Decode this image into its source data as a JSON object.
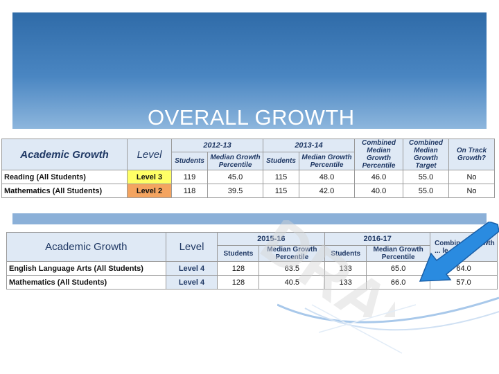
{
  "slide": {
    "title": "OVERALL GROWTH"
  },
  "table1": {
    "header": {
      "academic_growth": "Academic Growth",
      "level": "Level",
      "year1": "2012-13",
      "year2": "2013-14",
      "students": "Students",
      "median_growth_percentile": "Median Growth Percentile",
      "combined_median_growth_percentile": "Combined Median Growth Percentile",
      "combined_median_growth_target": "Combined Median Growth Target",
      "on_track_growth": "On Track Growth?"
    },
    "rows": [
      {
        "label": "Reading (All Students)",
        "level": "Level 3",
        "level_color": "#ffff66",
        "y1_students": "119",
        "y1_mgp": "45.0",
        "y2_students": "115",
        "y2_mgp": "48.0",
        "combined_mgp": "46.0",
        "combined_target": "55.0",
        "on_track": "No"
      },
      {
        "label": "Mathematics (All Students)",
        "level": "Level 2",
        "level_color": "#f4a460",
        "y1_students": "118",
        "y1_mgp": "39.5",
        "y2_students": "115",
        "y2_mgp": "42.0",
        "combined_mgp": "40.0",
        "combined_target": "55.0",
        "on_track": "No"
      }
    ]
  },
  "table2": {
    "header": {
      "academic_growth": "Academic Growth",
      "level": "Level",
      "year1": "2015-16",
      "year2": "2016-17",
      "students": "Students",
      "median_growth_percentile": "Median Growth Percentile",
      "combined_partial": "Combined Growth ... le"
    },
    "rows": [
      {
        "label": "English Language Arts (All Students)",
        "level": "Level 4",
        "y1_students": "128",
        "y1_mgp": "63.5",
        "y2_students": "133",
        "y2_mgp": "65.0",
        "combined": "64.0"
      },
      {
        "label": "Mathematics (All Students)",
        "level": "Level 4",
        "y1_students": "128",
        "y1_mgp": "40.5",
        "y2_students": "133",
        "y2_mgp": "66.0",
        "combined": "57.0"
      }
    ]
  },
  "decor": {
    "watermark_text": "DRAFT",
    "arrow_color": "#2a8be0",
    "header_color": "#3a76b4",
    "icons": [
      "arrow-icon",
      "swoosh-graphic"
    ]
  }
}
